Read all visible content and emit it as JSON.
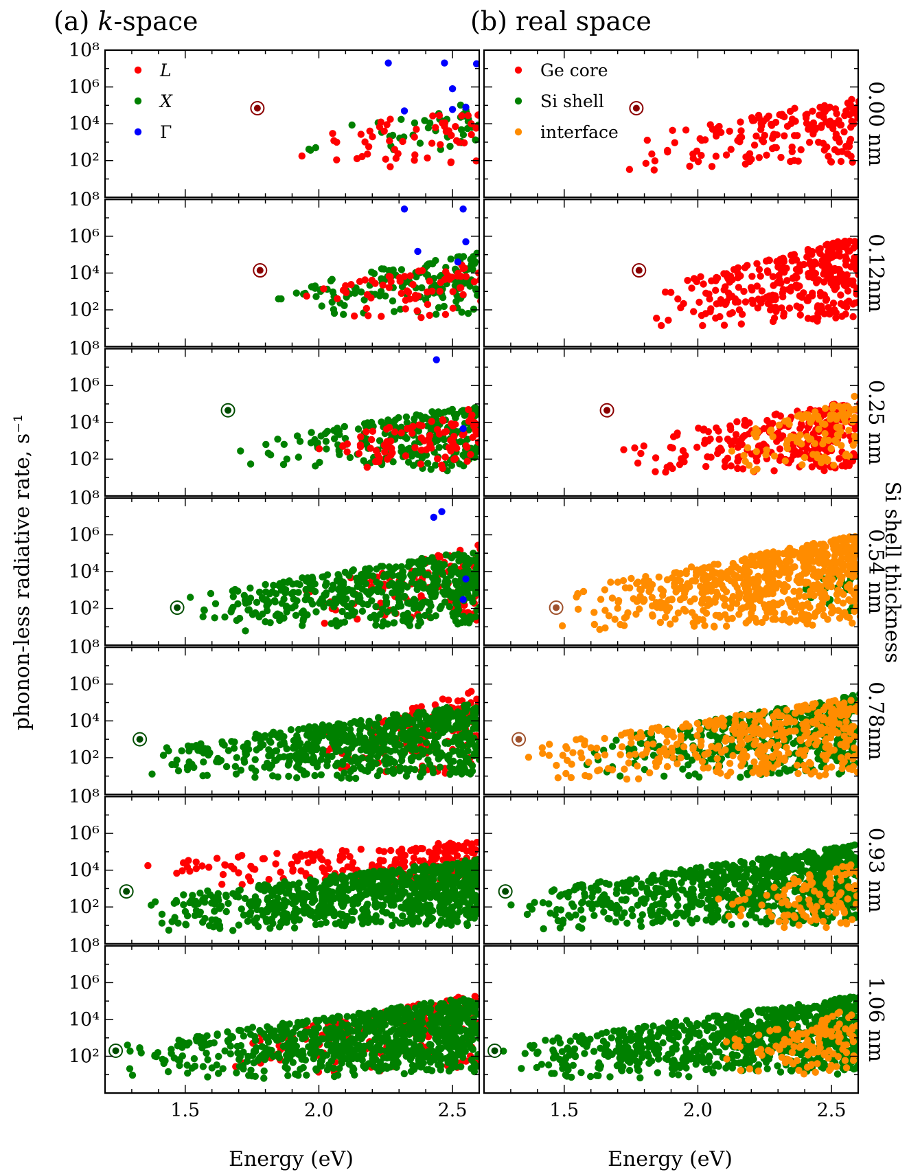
{
  "figure": {
    "columns": [
      {
        "id": "k",
        "title": "(a) k-space"
      },
      {
        "id": "r",
        "title": "(b) real space"
      }
    ],
    "ylabel": "phonon-less radiative rate, s⁻¹",
    "xlabel": "Energy (eV)",
    "right_label": "Si shell thickness"
  },
  "chart_data": {
    "type": "scatter",
    "xlabel": "Energy (eV)",
    "ylabel": "phonon-less radiative rate, s⁻¹",
    "xlim": [
      1.2,
      2.6
    ],
    "ylim": [
      1,
      100000000
    ],
    "yscale": "log",
    "xticks": [
      "1.5",
      "2.0",
      "2.5"
    ],
    "yticks": [
      "10^2",
      "10^4",
      "10^6",
      "10^8"
    ],
    "legend_k": [
      {
        "label": "L",
        "color": "#ff0000"
      },
      {
        "label": "X",
        "color": "#008000"
      },
      {
        "label": "Γ",
        "color": "#0000ff"
      }
    ],
    "legend_r": [
      {
        "label": "Ge core",
        "color": "#ff0000"
      },
      {
        "label": "Si shell",
        "color": "#008000"
      },
      {
        "label": "interface",
        "color": "#ff8c00"
      }
    ],
    "legend_placement": "upper-left",
    "panels": [
      {
        "thickness": "0.00 nm",
        "gap": {
          "x": 1.77,
          "y": 70000,
          "k_color": "#8b0000",
          "r_color": "#8b0000"
        },
        "k": {
          "L": [
            1.72,
            2.6,
            2.0,
            5.0,
            55
          ],
          "X": [
            1.9,
            2.6,
            2.5,
            5.2,
            45
          ],
          "G": [
            [
              2.26,
              20000000
            ],
            [
              2.47,
              20000000
            ],
            [
              2.59,
              18000000
            ],
            [
              2.5,
              800000
            ],
            [
              2.32,
              50000
            ],
            [
              2.5,
              60000
            ],
            [
              2.55,
              80000
            ]
          ]
        },
        "r": {
          "core": [
            1.72,
            2.6,
            2.0,
            5.5,
            170
          ],
          "shell": [],
          "intf": []
        }
      },
      {
        "thickness": "0.12nm",
        "gap": {
          "x": 1.78,
          "y": 14000,
          "k_color": "#8b0000",
          "r_color": "#8b0000"
        },
        "k": {
          "L": [
            1.8,
            2.6,
            2.0,
            4.6,
            70
          ],
          "X": [
            1.8,
            2.6,
            2.0,
            5.2,
            150
          ],
          "G": [
            [
              2.32,
              30000000
            ],
            [
              2.54,
              30000000
            ],
            [
              2.37,
              150000
            ],
            [
              2.55,
              500000
            ],
            [
              2.52,
              40000
            ]
          ]
        },
        "r": {
          "core": [
            1.8,
            2.6,
            1.5,
            6.0,
            330
          ],
          "shell": [],
          "intf": []
        }
      },
      {
        "thickness": "0.25 nm",
        "gap": {
          "x": 1.66,
          "y": 45000,
          "k_color": "#004d00",
          "r_color": "#8b0000"
        },
        "k": {
          "L": [
            1.95,
            2.6,
            1.8,
            4.8,
            90
          ],
          "X": [
            1.66,
            2.6,
            1.6,
            5.0,
            230
          ],
          "G": [
            [
              2.44,
              25000000
            ],
            [
              2.54,
              4500
            ]
          ]
        },
        "r": {
          "core": [
            1.66,
            2.6,
            1.6,
            5.2,
            260
          ],
          "shell": [],
          "intf": [
            2.1,
            2.6,
            1.8,
            5.5,
            110
          ]
        }
      },
      {
        "thickness": "0.54 nm",
        "gap": {
          "x": 1.47,
          "y": 110,
          "k_color": "#004d00",
          "r_color": "#a0522d"
        },
        "k": {
          "L": [
            1.9,
            2.6,
            1.4,
            5.6,
            110
          ],
          "X": [
            1.47,
            2.6,
            1.2,
            5.2,
            500
          ],
          "G": [
            [
              2.46,
              18000000
            ],
            [
              2.43,
              9000000
            ],
            [
              2.55,
              4000
            ],
            [
              2.54,
              300
            ]
          ]
        },
        "r": {
          "core": [],
          "shell": [
            2.3,
            2.6,
            1.8,
            4.5,
            25
          ],
          "intf": [
            1.47,
            2.6,
            1.2,
            6.0,
            650
          ]
        }
      },
      {
        "thickness": "0.78nm",
        "gap": {
          "x": 1.33,
          "y": 1000,
          "k_color": "#004d00",
          "r_color": "#a0522d"
        },
        "k": {
          "L": [
            1.95,
            2.6,
            1.3,
            5.8,
            120
          ],
          "X": [
            1.33,
            2.6,
            1.0,
            5.0,
            650
          ],
          "G": []
        },
        "r": {
          "core": [],
          "shell": [
            1.55,
            2.6,
            1.2,
            5.5,
            420
          ],
          "intf": [
            1.33,
            2.6,
            1.0,
            5.3,
            420
          ]
        }
      },
      {
        "thickness": "0.93 nm",
        "gap": {
          "x": 1.28,
          "y": 700,
          "k_color": "#004d00",
          "r_color": "#004d00"
        },
        "k": {
          "L": [
            1.28,
            2.6,
            3.8,
            5.6,
            230
          ],
          "X": [
            1.28,
            2.6,
            1.2,
            4.6,
            800
          ],
          "G": []
        },
        "r": {
          "core": [],
          "shell": [
            1.28,
            2.6,
            1.2,
            5.4,
            850
          ],
          "intf": [
            2.05,
            2.6,
            1.2,
            4.5,
            110
          ]
        }
      },
      {
        "thickness": "1.06 nm",
        "gap": {
          "x": 1.24,
          "y": 200,
          "k_color": "#004d00",
          "r_color": "#004d00"
        },
        "k": {
          "L": [
            1.6,
            2.6,
            1.5,
            5.4,
            200
          ],
          "X": [
            1.24,
            2.6,
            1.0,
            5.3,
            850
          ],
          "G": []
        },
        "r": {
          "core": [],
          "shell": [
            1.24,
            2.6,
            1.0,
            5.3,
            850
          ],
          "intf": [
            2.0,
            2.6,
            1.2,
            4.7,
            120
          ]
        }
      }
    ]
  }
}
